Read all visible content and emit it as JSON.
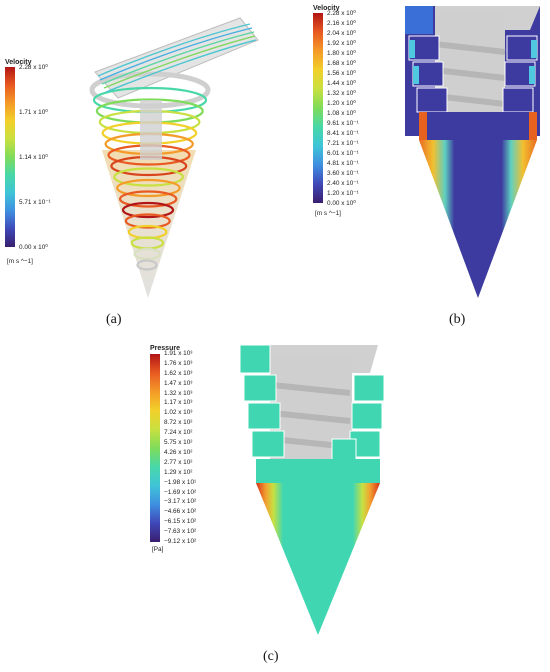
{
  "panel_a": {
    "legend_title": "Velocity",
    "ticks": [
      "2.28 x 10⁰",
      "1.71 x 10⁰",
      "1.14 x 10⁰",
      "5.71 x 10⁻¹",
      "0.00 x 10⁰"
    ],
    "unit": "[m s ^−1]",
    "caption": "(a)"
  },
  "panel_b": {
    "legend_title": "Velocity",
    "ticks": [
      "2.28 x 10⁰",
      "2.16 x 10⁰",
      "2.04 x 10⁰",
      "1.92 x 10⁰",
      "1.80 x 10⁰",
      "1.68 x 10⁰",
      "1.56 x 10⁰",
      "1.44 x 10⁰",
      "1.32 x 10⁰",
      "1.20 x 10⁰",
      "1.08 x 10⁰",
      "9.61 x 10⁻¹",
      "8.41 x 10⁻¹",
      "7.21 x 10⁻¹",
      "6.01 x 10⁻¹",
      "4.81 x 10⁻¹",
      "3.60 x 10⁻¹",
      "2.40 x 10⁻¹",
      "1.20 x 10⁻¹",
      "0.00 x 10⁰"
    ],
    "unit": "[m s ^−1]",
    "caption": "(b)"
  },
  "panel_c": {
    "legend_title": "Pressure",
    "ticks": [
      "1.91 x 10³",
      "1.76 x 10³",
      "1.62 x 10³",
      "1.47 x 10³",
      "1.32 x 10³",
      "1.17 x 10³",
      "1.02 x 10³",
      "8.72 x 10²",
      "7.24 x 10²",
      "5.75 x 10²",
      "4.26 x 10²",
      "2.77 x 10²",
      "1.29 x 10²",
      "−1.98 x 10¹",
      "−1.69 x 10²",
      "−3.17 x 10²",
      "−4.66 x 10²",
      "−6.15 x 10²",
      "−7.63 x 10²",
      "−9.12 x 10²"
    ],
    "unit": "[Pa]",
    "caption": "(c)"
  },
  "colors": {
    "scale": [
      "#3a1e6e",
      "#3f48b8",
      "#3f8fe0",
      "#3fc4d8",
      "#48d8a8",
      "#7fdc5a",
      "#c8e040",
      "#f2d02a",
      "#f49a28",
      "#e85a22",
      "#b11515"
    ],
    "shaft": "#c8c8c8",
    "wall_blue": "#3d3aa0",
    "wall_cyan": "#40d6b2"
  }
}
